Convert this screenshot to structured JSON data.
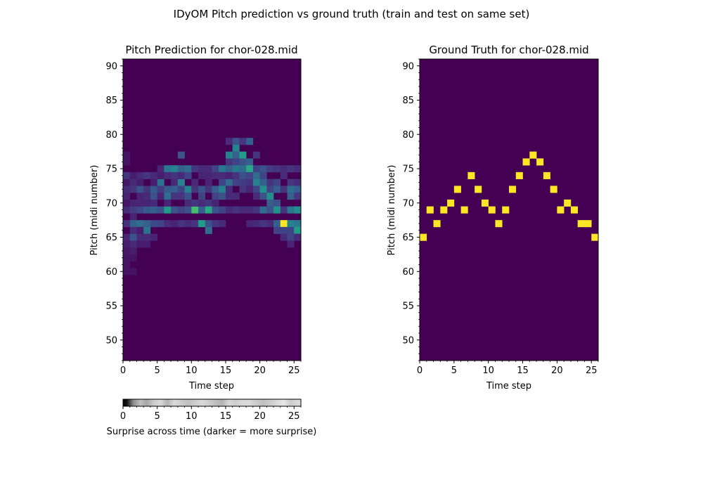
{
  "figure": {
    "suptitle": "IDyOM Pitch prediction vs ground truth (train and test on same set)"
  },
  "chart_data": [
    {
      "type": "heatmap",
      "title": "Pitch Prediction for chor-028.mid",
      "xlabel": "Time step",
      "ylabel": "Pitch (midi number)",
      "xlim": [
        0,
        26
      ],
      "ylim": [
        47,
        91
      ],
      "xticks": [
        0,
        5,
        10,
        15,
        20,
        25
      ],
      "yticks": [
        50,
        55,
        60,
        65,
        70,
        75,
        80,
        85,
        90
      ],
      "colormap": "viridis",
      "background_value": 0,
      "cells": [
        [
          0,
          74,
          0.15
        ],
        [
          0,
          72,
          0.12
        ],
        [
          0,
          71,
          0.1
        ],
        [
          0,
          69,
          0.12
        ],
        [
          0,
          67,
          0.14
        ],
        [
          0,
          65,
          0.1
        ],
        [
          0,
          64,
          0.08
        ],
        [
          0,
          63,
          0.06
        ],
        [
          0,
          61,
          0.05
        ],
        [
          0,
          60,
          0.05
        ],
        [
          0,
          77,
          0.05
        ],
        [
          0,
          76,
          0.05
        ],
        [
          0,
          73,
          0.06
        ],
        [
          0,
          70,
          0.06
        ],
        [
          0,
          62,
          0.05
        ],
        [
          1,
          73,
          0.12
        ],
        [
          1,
          72,
          0.15
        ],
        [
          1,
          70,
          0.1
        ],
        [
          1,
          69,
          0.18
        ],
        [
          1,
          68,
          0.1
        ],
        [
          1,
          67,
          0.3
        ],
        [
          1,
          66,
          0.12
        ],
        [
          1,
          65,
          0.25
        ],
        [
          1,
          64,
          0.12
        ],
        [
          1,
          63,
          0.08
        ],
        [
          1,
          62,
          0.05
        ],
        [
          1,
          60,
          0.05
        ],
        [
          1,
          74,
          0.08
        ],
        [
          2,
          74,
          0.12
        ],
        [
          2,
          72,
          0.25
        ],
        [
          2,
          71,
          0.1
        ],
        [
          2,
          69,
          0.22
        ],
        [
          2,
          67,
          0.35
        ],
        [
          2,
          65,
          0.12
        ],
        [
          2,
          64,
          0.08
        ],
        [
          2,
          73,
          0.08
        ],
        [
          2,
          70,
          0.1
        ],
        [
          2,
          66,
          0.08
        ],
        [
          3,
          74,
          0.15
        ],
        [
          3,
          72,
          0.15
        ],
        [
          3,
          71,
          0.12
        ],
        [
          3,
          69,
          0.28
        ],
        [
          3,
          67,
          0.3
        ],
        [
          3,
          66,
          0.38
        ],
        [
          3,
          65,
          0.12
        ],
        [
          3,
          64,
          0.08
        ],
        [
          3,
          70,
          0.1
        ],
        [
          4,
          74,
          0.12
        ],
        [
          4,
          72,
          0.28
        ],
        [
          4,
          71,
          0.25
        ],
        [
          4,
          69,
          0.3
        ],
        [
          4,
          67,
          0.22
        ],
        [
          4,
          65,
          0.1
        ],
        [
          4,
          70,
          0.12
        ],
        [
          4,
          73,
          0.08
        ],
        [
          5,
          75,
          0.1
        ],
        [
          5,
          73,
          0.38
        ],
        [
          5,
          72,
          0.18
        ],
        [
          5,
          69,
          0.25
        ],
        [
          5,
          67,
          0.2
        ],
        [
          5,
          71,
          0.1
        ],
        [
          5,
          74,
          0.08
        ],
        [
          6,
          75,
          0.4
        ],
        [
          6,
          72,
          0.28
        ],
        [
          6,
          71,
          0.35
        ],
        [
          6,
          69,
          0.55
        ],
        [
          6,
          67,
          0.12
        ],
        [
          6,
          74,
          0.12
        ],
        [
          6,
          70,
          0.1
        ],
        [
          7,
          75,
          0.45
        ],
        [
          7,
          73,
          0.12
        ],
        [
          7,
          72,
          0.3
        ],
        [
          7,
          71,
          0.15
        ],
        [
          7,
          69,
          0.25
        ],
        [
          7,
          67,
          0.1
        ],
        [
          7,
          74,
          0.15
        ],
        [
          8,
          77,
          0.25
        ],
        [
          8,
          75,
          0.3
        ],
        [
          8,
          73,
          0.45
        ],
        [
          8,
          72,
          0.2
        ],
        [
          8,
          71,
          0.15
        ],
        [
          8,
          69,
          0.2
        ],
        [
          8,
          67,
          0.15
        ],
        [
          8,
          74,
          0.12
        ],
        [
          9,
          75,
          0.35
        ],
        [
          9,
          74,
          0.2
        ],
        [
          9,
          72,
          0.45
        ],
        [
          9,
          71,
          0.25
        ],
        [
          9,
          69,
          0.25
        ],
        [
          9,
          70,
          0.12
        ],
        [
          9,
          67,
          0.12
        ],
        [
          10,
          75,
          0.15
        ],
        [
          10,
          73,
          0.12
        ],
        [
          10,
          72,
          0.15
        ],
        [
          10,
          69,
          0.7
        ],
        [
          10,
          70,
          0.15
        ],
        [
          10,
          67,
          0.15
        ],
        [
          11,
          75,
          0.12
        ],
        [
          11,
          72,
          0.25
        ],
        [
          11,
          71,
          0.2
        ],
        [
          11,
          69,
          0.3
        ],
        [
          11,
          67,
          0.55
        ],
        [
          11,
          70,
          0.12
        ],
        [
          11,
          74,
          0.1
        ],
        [
          12,
          75,
          0.12
        ],
        [
          12,
          73,
          0.1
        ],
        [
          12,
          72,
          0.15
        ],
        [
          12,
          70,
          0.15
        ],
        [
          12,
          69,
          0.6
        ],
        [
          12,
          67,
          0.25
        ],
        [
          12,
          66,
          0.35
        ],
        [
          12,
          74,
          0.1
        ],
        [
          13,
          75,
          0.2
        ],
        [
          13,
          72,
          0.3
        ],
        [
          13,
          71,
          0.2
        ],
        [
          13,
          69,
          0.25
        ],
        [
          13,
          67,
          0.15
        ],
        [
          13,
          74,
          0.12
        ],
        [
          13,
          70,
          0.1
        ],
        [
          14,
          75,
          0.4
        ],
        [
          14,
          73,
          0.2
        ],
        [
          14,
          72,
          0.45
        ],
        [
          14,
          71,
          0.25
        ],
        [
          14,
          69,
          0.2
        ],
        [
          14,
          67,
          0.12
        ],
        [
          14,
          74,
          0.12
        ],
        [
          15,
          79,
          0.12
        ],
        [
          15,
          77,
          0.45
        ],
        [
          15,
          76,
          0.15
        ],
        [
          15,
          75,
          0.3
        ],
        [
          15,
          73,
          0.35
        ],
        [
          15,
          72,
          0.12
        ],
        [
          15,
          71,
          0.12
        ],
        [
          15,
          69,
          0.12
        ],
        [
          15,
          74,
          0.1
        ],
        [
          16,
          79,
          0.25
        ],
        [
          16,
          78,
          0.45
        ],
        [
          16,
          77,
          0.3
        ],
        [
          16,
          76,
          0.2
        ],
        [
          16,
          75,
          0.4
        ],
        [
          16,
          74,
          0.15
        ],
        [
          16,
          73,
          0.2
        ],
        [
          16,
          71,
          0.12
        ],
        [
          16,
          69,
          0.15
        ],
        [
          17,
          79,
          0.15
        ],
        [
          17,
          77,
          0.55
        ],
        [
          17,
          76,
          0.25
        ],
        [
          17,
          75,
          0.35
        ],
        [
          17,
          74,
          0.25
        ],
        [
          17,
          73,
          0.18
        ],
        [
          17,
          72,
          0.15
        ],
        [
          17,
          69,
          0.12
        ],
        [
          18,
          79,
          0.3
        ],
        [
          18,
          76,
          0.3
        ],
        [
          18,
          75,
          0.6
        ],
        [
          18,
          74,
          0.2
        ],
        [
          18,
          73,
          0.15
        ],
        [
          18,
          72,
          0.1
        ],
        [
          18,
          69,
          0.12
        ],
        [
          18,
          67,
          0.1
        ],
        [
          19,
          77,
          0.15
        ],
        [
          19,
          75,
          0.2
        ],
        [
          19,
          74,
          0.35
        ],
        [
          19,
          73,
          0.45
        ],
        [
          19,
          72,
          0.2
        ],
        [
          19,
          71,
          0.12
        ],
        [
          19,
          69,
          0.15
        ],
        [
          19,
          67,
          0.12
        ],
        [
          20,
          75,
          0.25
        ],
        [
          20,
          74,
          0.2
        ],
        [
          20,
          73,
          0.3
        ],
        [
          20,
          72,
          0.5
        ],
        [
          20,
          71,
          0.25
        ],
        [
          20,
          69,
          0.35
        ],
        [
          20,
          67,
          0.15
        ],
        [
          21,
          75,
          0.18
        ],
        [
          21,
          73,
          0.15
        ],
        [
          21,
          72,
          0.2
        ],
        [
          21,
          71,
          0.5
        ],
        [
          21,
          70,
          0.3
        ],
        [
          21,
          69,
          0.25
        ],
        [
          21,
          67,
          0.12
        ],
        [
          22,
          75,
          0.15
        ],
        [
          22,
          73,
          0.2
        ],
        [
          22,
          72,
          0.3
        ],
        [
          22,
          70,
          0.25
        ],
        [
          22,
          69,
          0.5
        ],
        [
          22,
          67,
          0.3
        ],
        [
          22,
          66,
          0.2
        ],
        [
          23,
          75,
          0.12
        ],
        [
          23,
          74,
          0.12
        ],
        [
          23,
          72,
          0.15
        ],
        [
          23,
          69,
          0.15
        ],
        [
          23,
          67,
          1.0
        ],
        [
          23,
          66,
          0.2
        ],
        [
          23,
          65,
          0.12
        ],
        [
          24,
          75,
          0.15
        ],
        [
          24,
          73,
          0.15
        ],
        [
          24,
          72,
          0.35
        ],
        [
          24,
          71,
          0.3
        ],
        [
          24,
          69,
          0.4
        ],
        [
          24,
          67,
          0.45
        ],
        [
          24,
          66,
          0.2
        ],
        [
          24,
          65,
          0.2
        ],
        [
          24,
          64,
          0.1
        ],
        [
          25,
          75,
          0.12
        ],
        [
          25,
          73,
          0.12
        ],
        [
          25,
          72,
          0.3
        ],
        [
          25,
          69,
          0.5
        ],
        [
          25,
          67,
          0.4
        ],
        [
          25,
          66,
          0.55
        ],
        [
          25,
          65,
          0.12
        ],
        [
          25,
          71,
          0.15
        ]
      ],
      "surprise_strip": {
        "label": "Surprise across time (darker = more surprise)",
        "xlim": [
          0,
          26
        ],
        "xticks": [
          0,
          5,
          10,
          15,
          20,
          25
        ],
        "colormap": "grayscale (darker = more surprise)",
        "values": [
          0.95,
          0.45,
          0.25,
          0.35,
          0.2,
          0.15,
          0.3,
          0.15,
          0.2,
          0.25,
          0.2,
          0.15,
          0.2,
          0.25,
          0.3,
          0.15,
          0.2,
          0.15,
          0.15,
          0.2,
          0.25,
          0.2,
          0.15,
          0.1,
          0.2,
          0.15
        ]
      }
    },
    {
      "type": "heatmap",
      "title": "Ground Truth for chor-028.mid",
      "xlabel": "Time step",
      "ylabel": "Pitch (midi number)",
      "xlim": [
        0,
        26
      ],
      "ylim": [
        47,
        91
      ],
      "xticks": [
        0,
        5,
        10,
        15,
        20,
        25
      ],
      "yticks": [
        50,
        55,
        60,
        65,
        70,
        75,
        80,
        85,
        90
      ],
      "colormap": "viridis",
      "background_value": 0,
      "cells": [
        [
          0,
          65,
          1
        ],
        [
          1,
          69,
          1
        ],
        [
          2,
          67,
          1
        ],
        [
          3,
          69,
          1
        ],
        [
          4,
          70,
          1
        ],
        [
          5,
          72,
          1
        ],
        [
          6,
          69,
          1
        ],
        [
          7,
          74,
          1
        ],
        [
          8,
          72,
          1
        ],
        [
          9,
          70,
          1
        ],
        [
          10,
          69,
          1
        ],
        [
          11,
          67,
          1
        ],
        [
          12,
          69,
          1
        ],
        [
          13,
          72,
          1
        ],
        [
          14,
          74,
          1
        ],
        [
          15,
          76,
          1
        ],
        [
          16,
          77,
          1
        ],
        [
          17,
          76,
          1
        ],
        [
          18,
          74,
          1
        ],
        [
          19,
          72,
          1
        ],
        [
          20,
          69,
          1
        ],
        [
          21,
          70,
          1
        ],
        [
          22,
          69,
          1
        ],
        [
          23,
          67,
          1
        ],
        [
          24,
          67,
          1
        ],
        [
          25,
          65,
          1
        ]
      ]
    }
  ]
}
